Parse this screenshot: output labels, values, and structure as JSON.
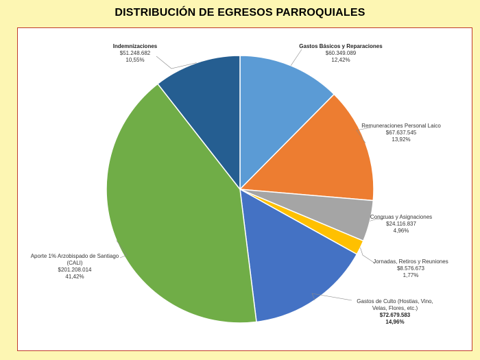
{
  "title": "DISTRIBUCIÓN DE EGRESOS PARROQUIALES",
  "chart_data": {
    "type": "pie",
    "title": "DISTRIBUCIÓN DE EGRESOS PARROQUIALES",
    "legend": "none",
    "slices": [
      {
        "label": [
          "Gastos Básicos y Reparaciones"
        ],
        "amount": "$60.349.089",
        "percent": "12,42%",
        "value": 60349089,
        "color": "#5b9bd5",
        "bold_title": true,
        "bold_values": false
      },
      {
        "label": [
          "Remuneraciones Personal Laico"
        ],
        "amount": "$67.637.545",
        "percent": "13,92%",
        "value": 67637545,
        "color": "#ed7d31",
        "bold_title": false,
        "bold_values": false
      },
      {
        "label": [
          "Congruas y Asignaciones"
        ],
        "amount": "$24.116.837",
        "percent": "4,96%",
        "value": 24116837,
        "color": "#a5a5a5",
        "bold_title": false,
        "bold_values": false
      },
      {
        "label": [
          "Jornadas, Retiros y Reuniones"
        ],
        "amount": "$8.576.673",
        "percent": "1,77%",
        "value": 8576673,
        "color": "#ffc000",
        "bold_title": false,
        "bold_values": false
      },
      {
        "label": [
          "Gastos de Culto (Hostias, Vino,",
          "Velas, Flores, etc.)"
        ],
        "amount": "$72.679.583",
        "percent": "14,96%",
        "value": 72679583,
        "color": "#4472c4",
        "bold_title": false,
        "bold_values": true
      },
      {
        "label": [
          "Aporte 1% Arzobispado de Santiago",
          "(CALI)"
        ],
        "amount": "$201.208.014",
        "percent": "41,42%",
        "value": 201208014,
        "color": "#70ad47",
        "bold_title": false,
        "bold_values": false
      },
      {
        "label": [
          "Indemnizaciones"
        ],
        "amount": "$51.248.682",
        "percent": "10,55%",
        "value": 51248682,
        "color": "#255e91",
        "bold_title": true,
        "bold_values": false
      }
    ]
  }
}
